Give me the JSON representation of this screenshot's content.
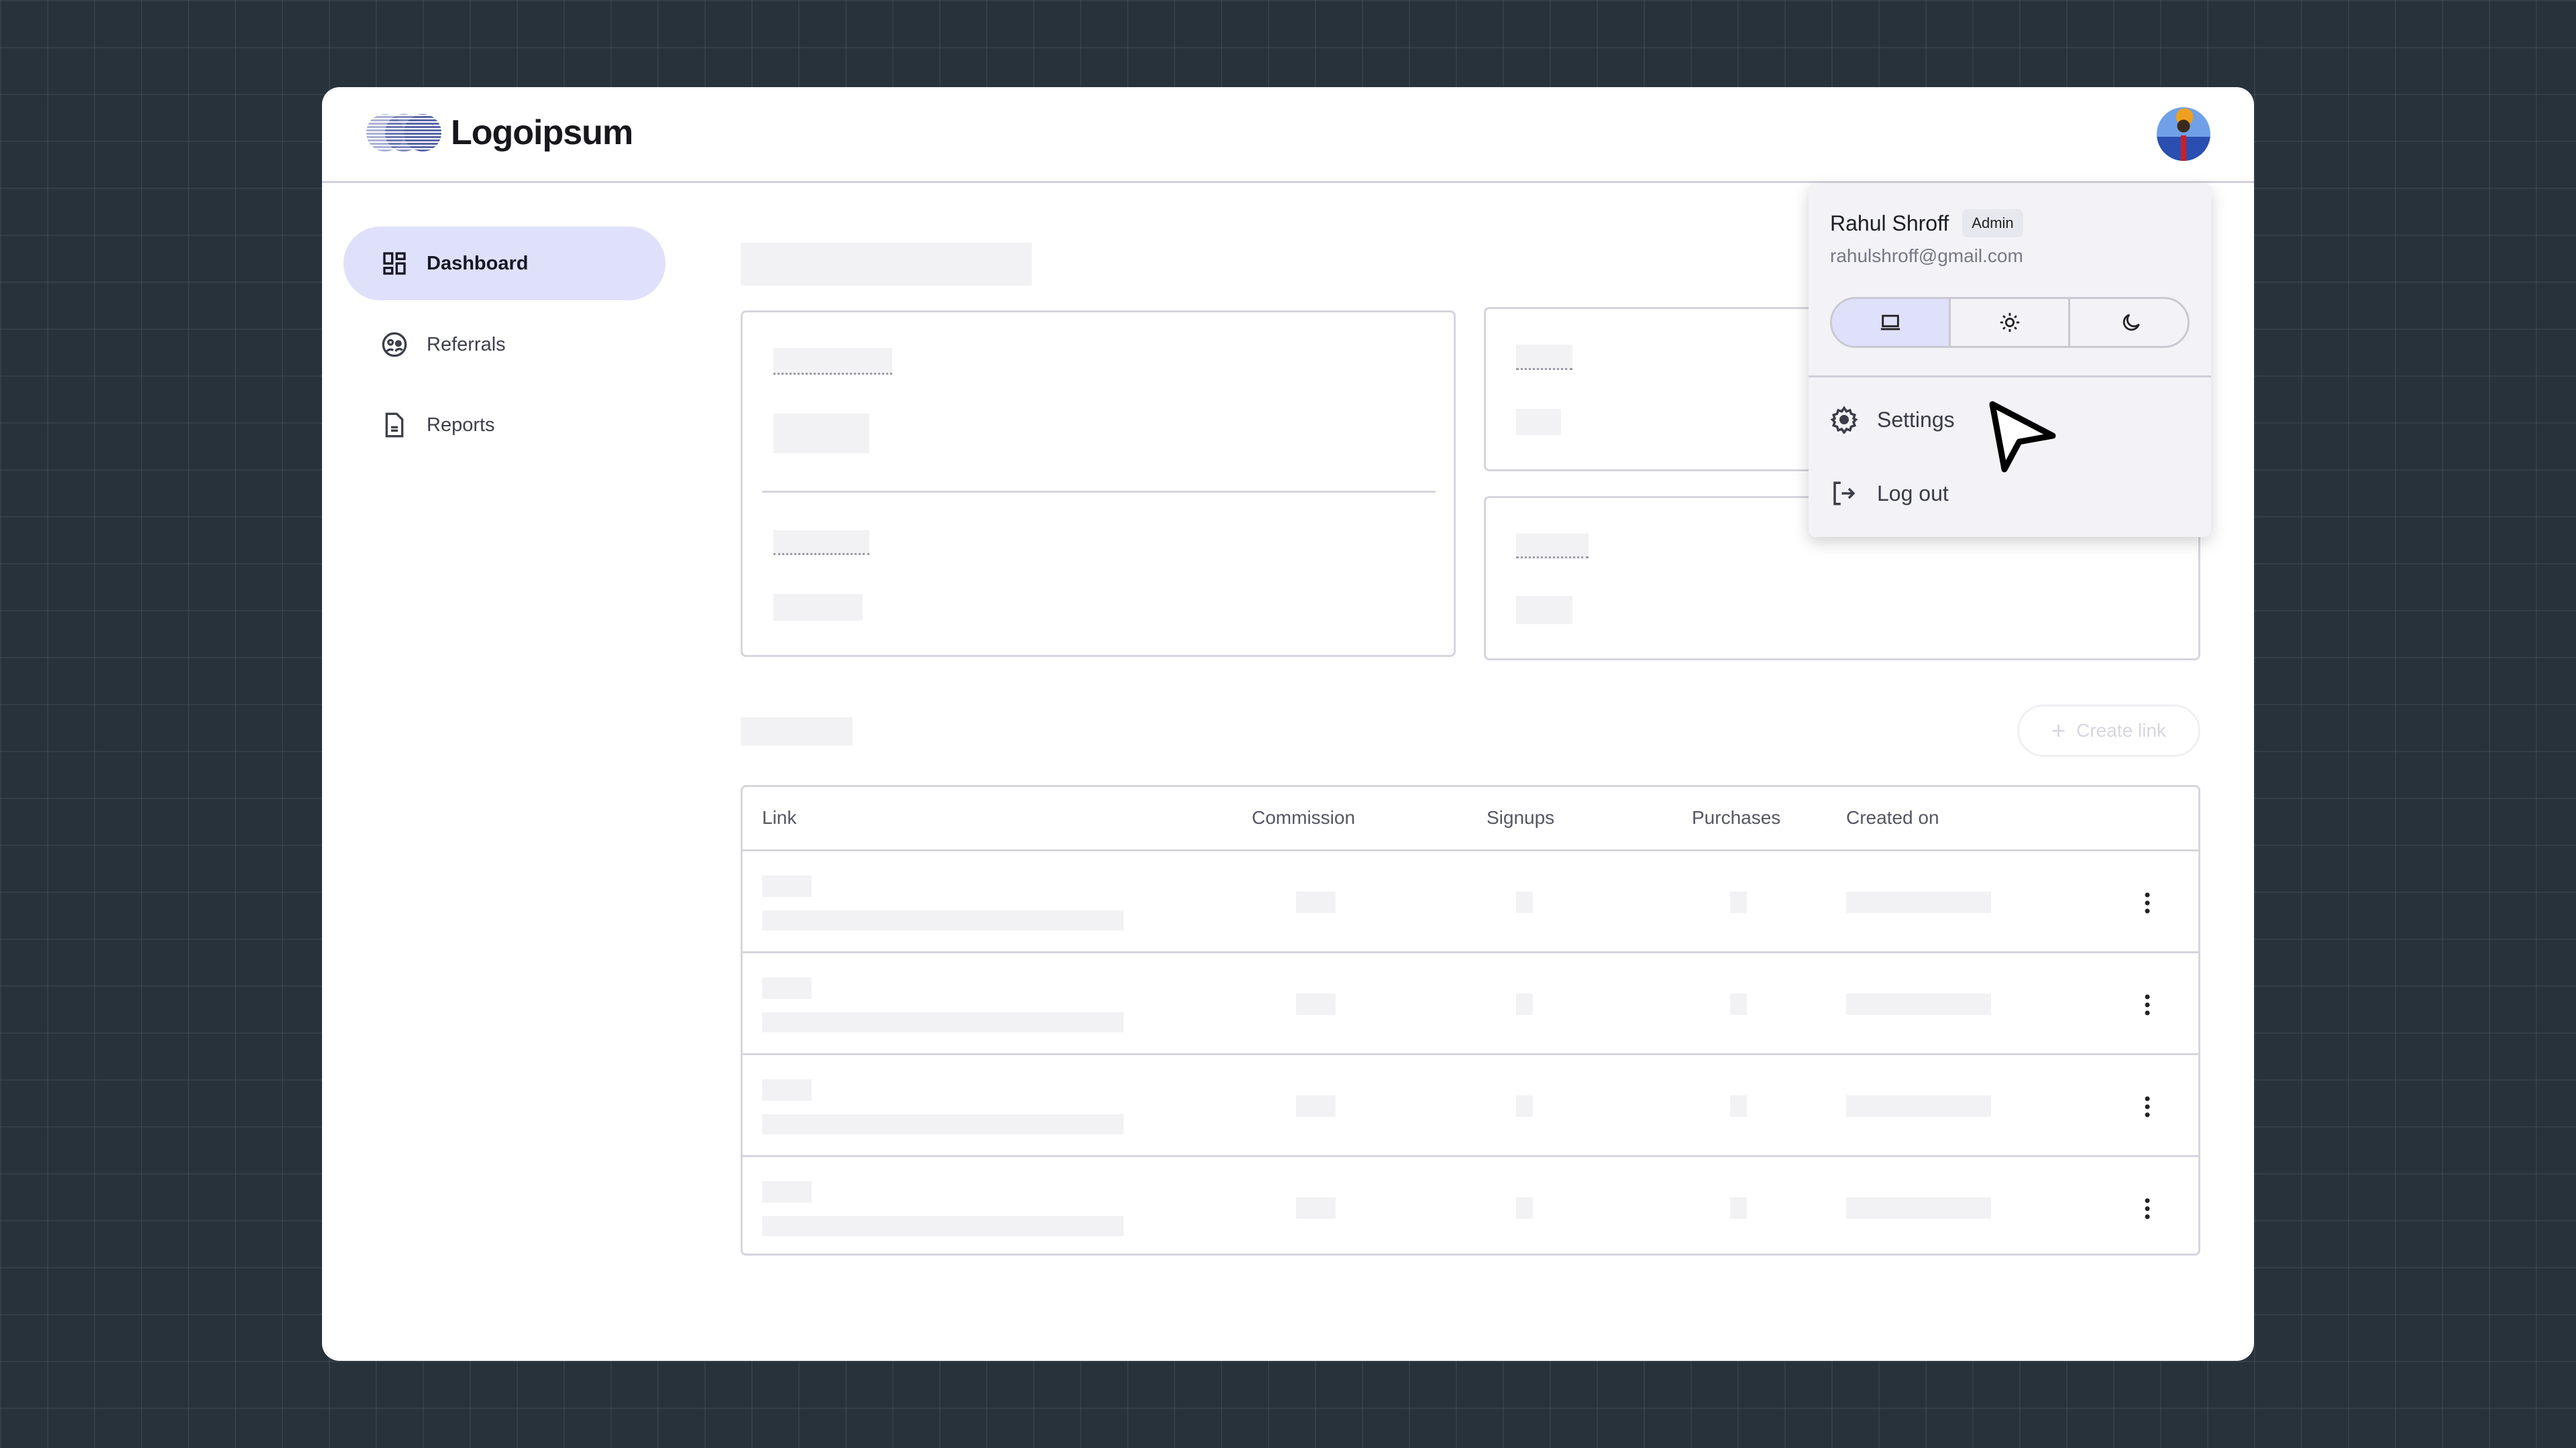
{
  "header": {
    "logo_text": "Logoipsum",
    "avatar": "user-avatar"
  },
  "sidebar": {
    "items": [
      {
        "label": "Dashboard",
        "icon": "dashboard-icon",
        "active": true
      },
      {
        "label": "Referrals",
        "icon": "referrals-icon"
      },
      {
        "label": "Reports",
        "icon": "document-icon"
      }
    ]
  },
  "main": {
    "create_link_label": "Create link",
    "table": {
      "columns": [
        "Link",
        "Commission",
        "Signups",
        "Purchases",
        "Created on"
      ],
      "row_count": 4
    }
  },
  "user_menu": {
    "name": "Rahul Shroff",
    "role_badge": "Admin",
    "email": "rahulshroff@gmail.com",
    "theme_options": [
      {
        "icon": "laptop-icon",
        "selected": true
      },
      {
        "icon": "sun-icon"
      },
      {
        "icon": "moon-icon"
      }
    ],
    "items": [
      {
        "label": "Settings",
        "icon": "gear-icon"
      },
      {
        "label": "Log out",
        "icon": "logout-icon"
      }
    ]
  },
  "colors": {
    "accent_bg": "#dfe0fa",
    "menu_bg": "#f2f2f7",
    "page_bg": "#27323a"
  }
}
